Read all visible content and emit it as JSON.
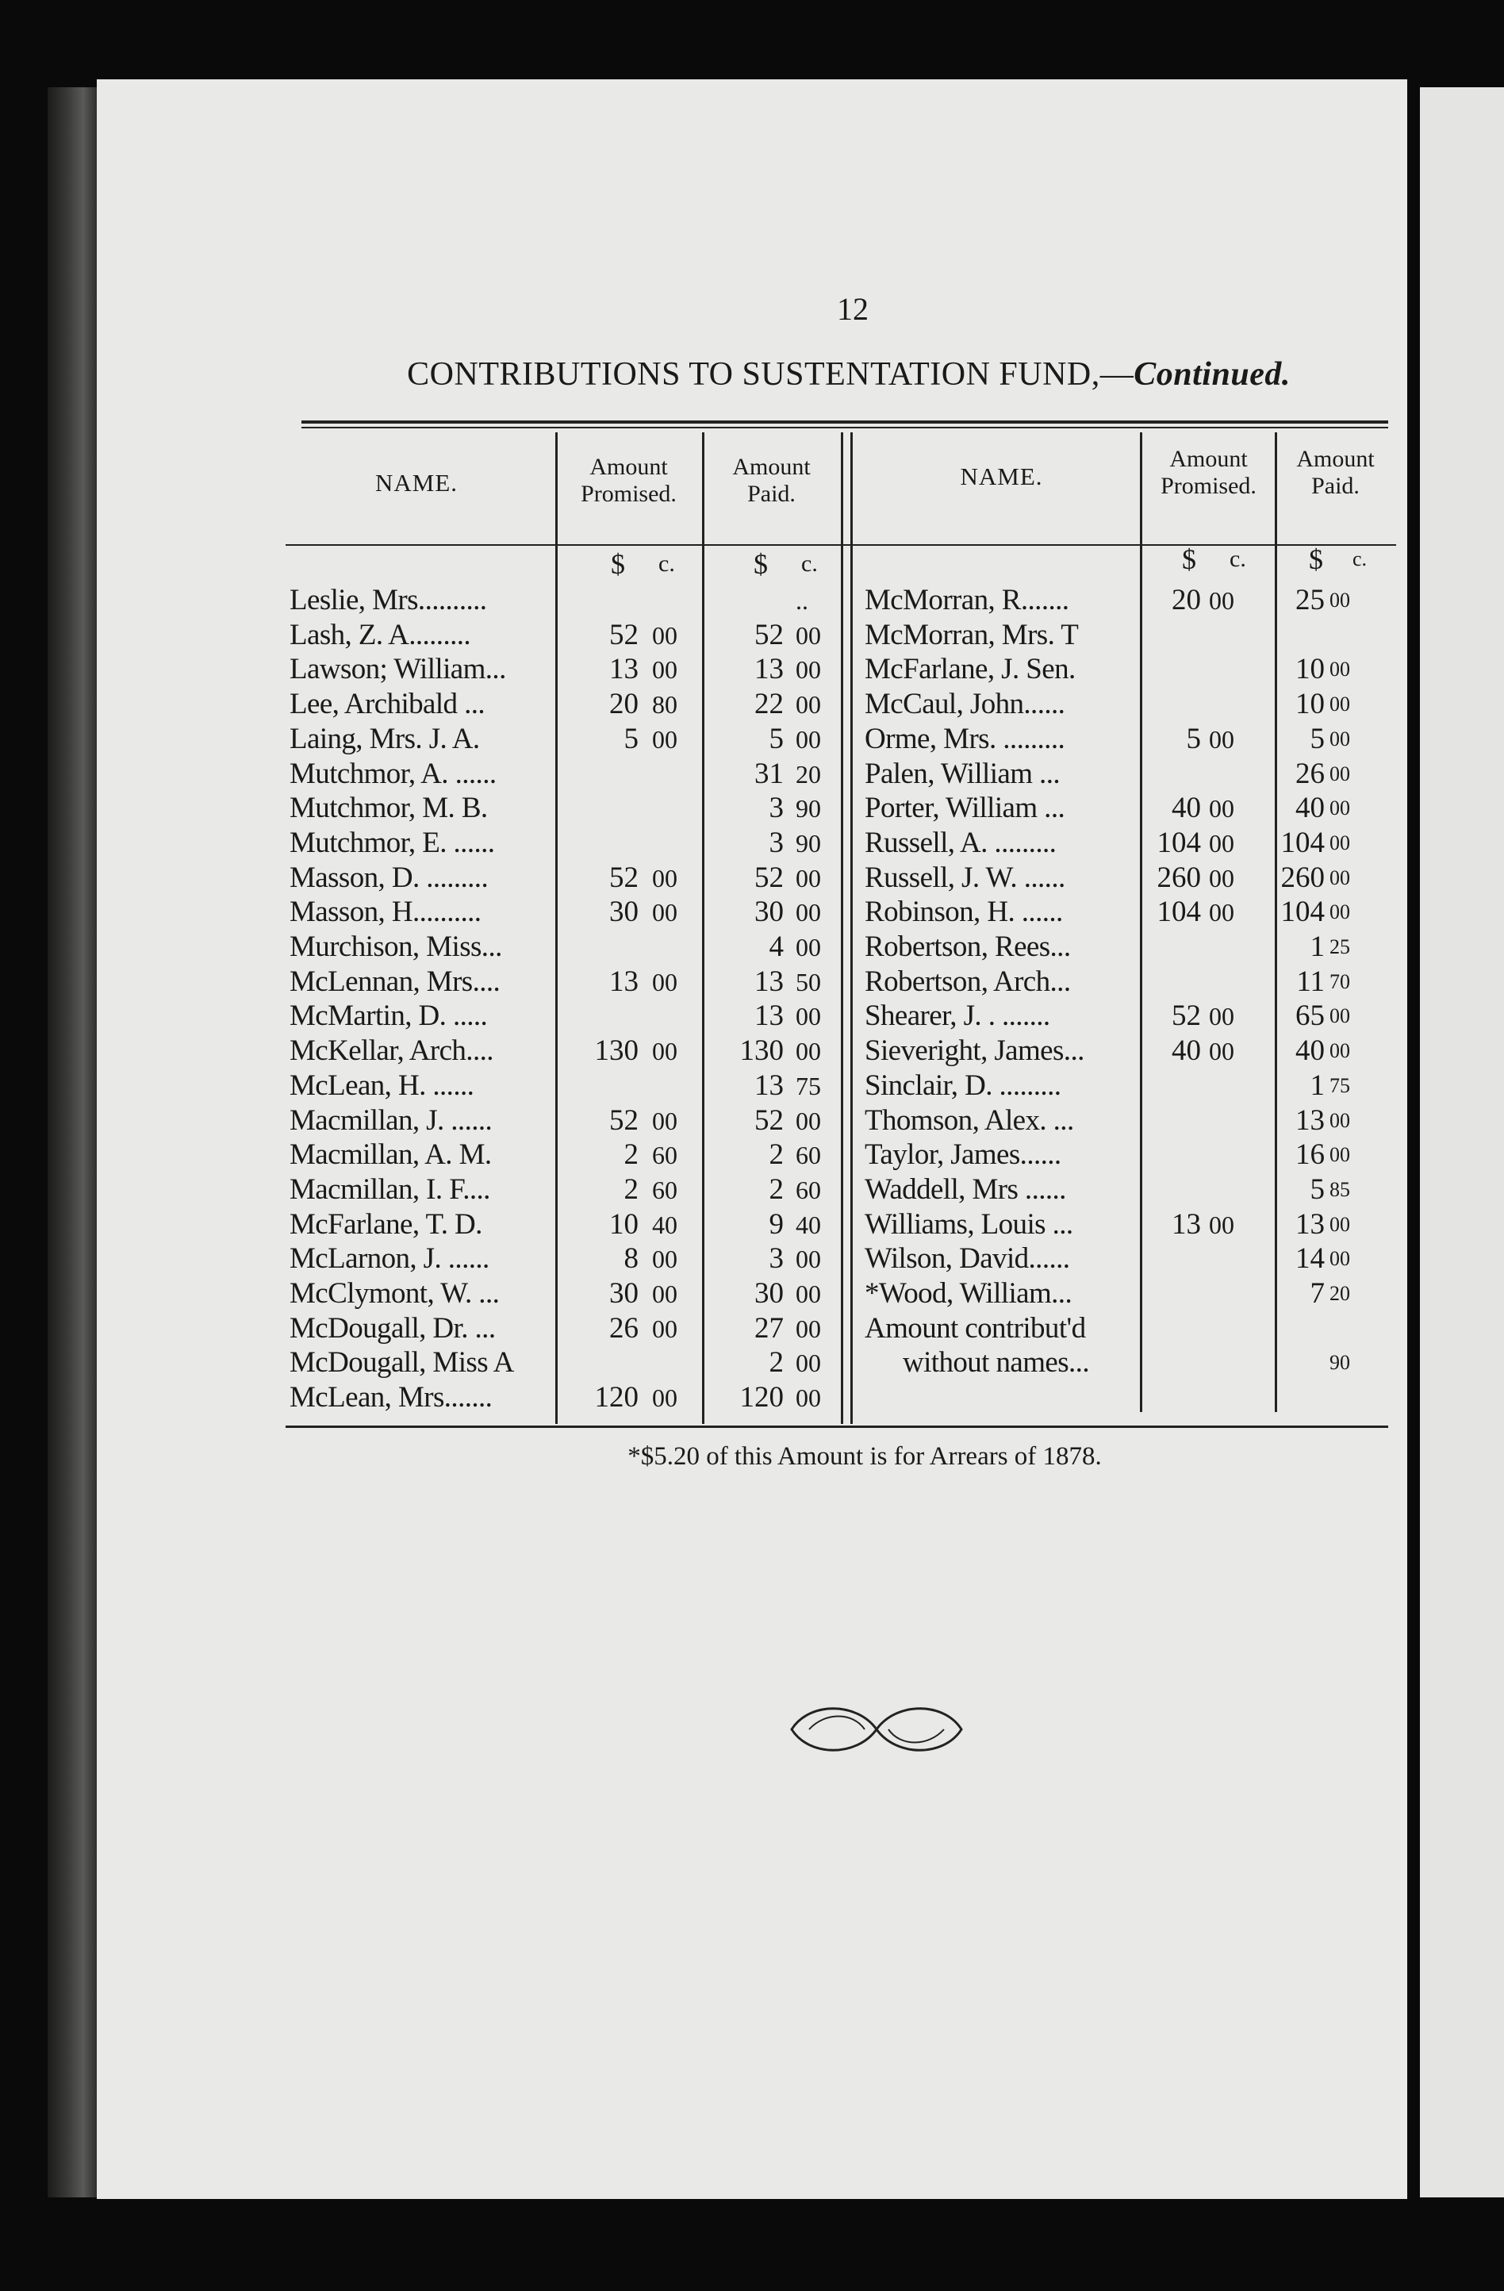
{
  "page_number": "12",
  "title": {
    "main": "CONTRIBUTIONS TO SUSTENTATION FUND,—",
    "continued": "Continued."
  },
  "headers": {
    "name": "NAME.",
    "promised": [
      "Amount",
      "Promised."
    ],
    "paid": [
      "Amount",
      "Paid."
    ],
    "dollar": "$",
    "cents": "c."
  },
  "left_rows": [
    {
      "name": "Leslie, Mrs..........",
      "promised": [
        "",
        ""
      ],
      "paid": [
        "",
        ".."
      ]
    },
    {
      "name": "Lash, Z. A.........",
      "promised": [
        "52",
        "00"
      ],
      "paid": [
        "52",
        "00"
      ]
    },
    {
      "name": "Lawson; William...",
      "promised": [
        "13",
        "00"
      ],
      "paid": [
        "13",
        "00"
      ]
    },
    {
      "name": "Lee, Archibald  ...",
      "promised": [
        "20",
        "80"
      ],
      "paid": [
        "22",
        "00"
      ]
    },
    {
      "name": "Laing, Mrs. J. A.",
      "promised": [
        "5",
        "00"
      ],
      "paid": [
        "5",
        "00"
      ]
    },
    {
      "name": "Mutchmor, A. ......",
      "promised": [
        "",
        ""
      ],
      "paid": [
        "31",
        "20"
      ]
    },
    {
      "name": "Mutchmor, M. B.",
      "promised": [
        "",
        ""
      ],
      "paid": [
        "3",
        "90"
      ]
    },
    {
      "name": "Mutchmor, E. ......",
      "promised": [
        "",
        ""
      ],
      "paid": [
        "3",
        "90"
      ]
    },
    {
      "name": "Masson, D. .........",
      "promised": [
        "52",
        "00"
      ],
      "paid": [
        "52",
        "00"
      ]
    },
    {
      "name": "Masson, H..........",
      "promised": [
        "30",
        "00"
      ],
      "paid": [
        "30",
        "00"
      ]
    },
    {
      "name": "Murchison, Miss...",
      "promised": [
        "",
        ""
      ],
      "paid": [
        "4",
        "00"
      ]
    },
    {
      "name": "McLennan, Mrs....",
      "promised": [
        "13",
        "00"
      ],
      "paid": [
        "13",
        "50"
      ]
    },
    {
      "name": "McMartin, D. .....",
      "promised": [
        "",
        ""
      ],
      "paid": [
        "13",
        "00"
      ]
    },
    {
      "name": "McKellar, Arch....",
      "promised": [
        "130",
        "00"
      ],
      "paid": [
        "130",
        "00"
      ]
    },
    {
      "name": "McLean, H.  ......",
      "promised": [
        "",
        ""
      ],
      "paid": [
        "13",
        "75"
      ]
    },
    {
      "name": "Macmillan, J. ......",
      "promised": [
        "52",
        "00"
      ],
      "paid": [
        "52",
        "00"
      ]
    },
    {
      "name": "Macmillan, A. M.",
      "promised": [
        "2",
        "60"
      ],
      "paid": [
        "2",
        "60"
      ]
    },
    {
      "name": "Macmillan, I. F....",
      "promised": [
        "2",
        "60"
      ],
      "paid": [
        "2",
        "60"
      ]
    },
    {
      "name": "McFarlane, T. D.",
      "promised": [
        "10",
        "40"
      ],
      "paid": [
        "9",
        "40"
      ]
    },
    {
      "name": "McLarnon, J. ......",
      "promised": [
        "8",
        "00"
      ],
      "paid": [
        "3",
        "00"
      ]
    },
    {
      "name": "McClymont, W. ...",
      "promised": [
        "30",
        "00"
      ],
      "paid": [
        "30",
        "00"
      ]
    },
    {
      "name": "McDougall, Dr. ...",
      "promised": [
        "26",
        "00"
      ],
      "paid": [
        "27",
        "00"
      ]
    },
    {
      "name": "McDougall, Miss A",
      "promised": [
        "",
        ""
      ],
      "paid": [
        "2",
        "00"
      ]
    },
    {
      "name": "McLean, Mrs.......",
      "promised": [
        "120",
        "00"
      ],
      "paid": [
        "120",
        "00"
      ]
    }
  ],
  "right_rows": [
    {
      "name": "McMorran, R.......",
      "promised": [
        "20",
        "00"
      ],
      "paid": [
        "25",
        "00"
      ]
    },
    {
      "name": "McMorran, Mrs. T",
      "promised": [
        "",
        ""
      ],
      "paid": [
        "",
        ""
      ]
    },
    {
      "name": "McFarlane, J. Sen.",
      "promised": [
        "",
        ""
      ],
      "paid": [
        "10",
        "00"
      ]
    },
    {
      "name": "McCaul, John......",
      "promised": [
        "",
        ""
      ],
      "paid": [
        "10",
        "00"
      ]
    },
    {
      "name": "Orme, Mrs. .........",
      "promised": [
        "5",
        "00"
      ],
      "paid": [
        "5",
        "00"
      ]
    },
    {
      "name": "Palen, William  ...",
      "promised": [
        "",
        ""
      ],
      "paid": [
        "26",
        "00"
      ]
    },
    {
      "name": "Porter, William  ...",
      "promised": [
        "40",
        "00"
      ],
      "paid": [
        "40",
        "00"
      ]
    },
    {
      "name": "Russell, A. .........",
      "promised": [
        "104",
        "00"
      ],
      "paid": [
        "104",
        "00"
      ]
    },
    {
      "name": "Russell, J. W. ......",
      "promised": [
        "260",
        "00"
      ],
      "paid": [
        "260",
        "00"
      ]
    },
    {
      "name": "Robinson, H. ......",
      "promised": [
        "104",
        "00"
      ],
      "paid": [
        "104",
        "00"
      ]
    },
    {
      "name": "Robertson, Rees...",
      "promised": [
        "",
        ""
      ],
      "paid": [
        "1",
        "25"
      ]
    },
    {
      "name": "Robertson, Arch...",
      "promised": [
        "",
        ""
      ],
      "paid": [
        "11",
        "70"
      ]
    },
    {
      "name": "Shearer, J. . .......",
      "promised": [
        "52",
        "00"
      ],
      "paid": [
        "65",
        "00"
      ]
    },
    {
      "name": "Sieveright, James...",
      "promised": [
        "40",
        "00"
      ],
      "paid": [
        "40",
        "00"
      ]
    },
    {
      "name": "Sinclair, D. .........",
      "promised": [
        "",
        ""
      ],
      "paid": [
        "1",
        "75"
      ]
    },
    {
      "name": "Thomson, Alex. ...",
      "promised": [
        "",
        ""
      ],
      "paid": [
        "13",
        "00"
      ]
    },
    {
      "name": "Taylor, James......",
      "promised": [
        "",
        ""
      ],
      "paid": [
        "16",
        "00"
      ]
    },
    {
      "name": "Waddell, Mrs ......",
      "promised": [
        "",
        ""
      ],
      "paid": [
        "5",
        "85"
      ]
    },
    {
      "name": "Williams, Louis ...",
      "promised": [
        "13",
        "00"
      ],
      "paid": [
        "13",
        "00"
      ]
    },
    {
      "name": "Wilson, David......",
      "promised": [
        "",
        ""
      ],
      "paid": [
        "14",
        "00"
      ]
    },
    {
      "name": "*Wood, William...",
      "promised": [
        "",
        ""
      ],
      "paid": [
        "7",
        "20"
      ]
    },
    {
      "name": "Amount contribut'd",
      "promised": [
        "",
        ""
      ],
      "paid": [
        "",
        ""
      ]
    },
    {
      "name": "without names...",
      "promised": [
        "",
        ""
      ],
      "paid": [
        "",
        "90"
      ]
    }
  ],
  "footnote": "*$5.20 of this Amount is for Arrears of 1878."
}
